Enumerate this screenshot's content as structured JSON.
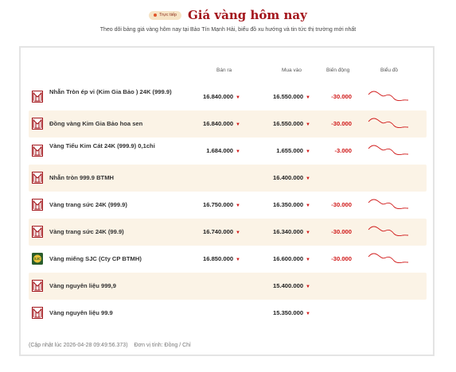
{
  "header": {
    "badge": "Trực tiếp",
    "title": "Giá vàng hôm nay",
    "subtitle": "Theo dõi bảng giá vàng hôm nay tại Bảo Tín Mạnh Hải, biểu đồ xu hướng và tin tức thị trường mới nhất"
  },
  "table": {
    "columns": {
      "sell": "Bán ra",
      "buy": "Mua vào",
      "change": "Biến động",
      "chart": "Biểu đồ"
    },
    "rows": [
      {
        "name": "Nhẫn Tròn ép vỉ (Kim Gia Bảo ) 24K (999.9)",
        "sell": "16.840.000",
        "buy": "16.550.000",
        "change": "-30.000",
        "logo": "btmh-logo-icon",
        "spark": true
      },
      {
        "name": "Đồng vàng Kim Gia Bảo hoa sen",
        "sell": "16.840.000",
        "buy": "16.550.000",
        "change": "-30.000",
        "logo": "btmh-logo-icon",
        "spark": true
      },
      {
        "name": "Vàng Tiểu Kim Cát 24K (999.9) 0,1chỉ",
        "sell": "1.684.000",
        "buy": "1.655.000",
        "change": "-3.000",
        "logo": "btmh-logo-icon",
        "spark": true
      },
      {
        "name": "Nhẫn tròn 999.9 BTMH",
        "sell": "",
        "buy": "16.400.000",
        "change": "",
        "logo": "btmh-logo-icon",
        "spark": false
      },
      {
        "name": "Vàng trang sức 24K (999.9)",
        "sell": "16.750.000",
        "buy": "16.350.000",
        "change": "-30.000",
        "logo": "btmh-logo-icon",
        "spark": true
      },
      {
        "name": "Vàng trang sức 24K (99.9)",
        "sell": "16.740.000",
        "buy": "16.340.000",
        "change": "-30.000",
        "logo": "btmh-logo-icon",
        "spark": true
      },
      {
        "name": "Vàng miếng SJC (Cty CP BTMH)",
        "sell": "16.850.000",
        "buy": "16.600.000",
        "change": "-30.000",
        "logo": "sjc-logo-icon",
        "spark": true
      },
      {
        "name": "Vàng nguyên liệu 999,9",
        "sell": "",
        "buy": "15.400.000",
        "change": "",
        "logo": "btmh-logo-icon",
        "spark": false
      },
      {
        "name": "Vàng nguyên liệu 99.9",
        "sell": "",
        "buy": "15.350.000",
        "change": "",
        "logo": "btmh-logo-icon",
        "spark": false
      }
    ]
  },
  "footer": {
    "updated": "(Cập nhật lúc 2026-04-28 09:49:56.373)",
    "unit": "Đơn vị tính: Đồng / Chỉ"
  },
  "colors": {
    "accent": "#a3161c",
    "down": "#d01818",
    "row_alt": "#fbf3e6"
  }
}
